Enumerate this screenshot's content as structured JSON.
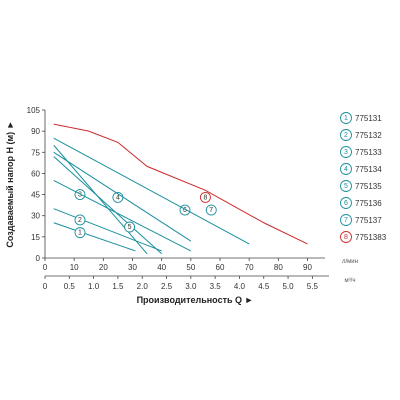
{
  "chart_data": {
    "type": "line",
    "ylabel": "Создаваемый напор H (м)",
    "xlabel": "Производительность Q",
    "x_unit_top": "л/мин",
    "x_unit_bottom": "м³/ч",
    "x_ticks_lmin": [
      "0",
      "10",
      "20",
      "30",
      "40",
      "50",
      "60",
      "70",
      "80",
      "90"
    ],
    "x_ticks_m3h": [
      "0",
      "0.5",
      "1.0",
      "1.5",
      "2.0",
      "2.5",
      "3.0",
      "3.5",
      "4.0",
      "4.5",
      "5.0",
      "5.5"
    ],
    "y_ticks": [
      "0",
      "15",
      "30",
      "45",
      "60",
      "75",
      "90",
      "105"
    ],
    "xlim_lmin": [
      0,
      96
    ],
    "ylim": [
      0,
      105
    ],
    "grid": false,
    "legend_position": "right",
    "colors": {
      "teal": "#1a8f9e",
      "red": "#cc2a2a"
    },
    "series": [
      {
        "name": "775131",
        "label": "1",
        "color": "#1a8f9e",
        "x": [
          3,
          31
        ],
        "y": [
          25,
          5
        ],
        "label_at": [
          12,
          18
        ]
      },
      {
        "name": "775132",
        "label": "2",
        "color": "#1a8f9e",
        "x": [
          3,
          40
        ],
        "y": [
          35,
          5
        ],
        "label_at": [
          12,
          27
        ]
      },
      {
        "name": "775133",
        "label": "3",
        "color": "#1a8f9e",
        "x": [
          3,
          35
        ],
        "y": [
          80,
          3
        ],
        "label_at": [
          12,
          45
        ]
      },
      {
        "name": "775134",
        "label": "4",
        "color": "#1a8f9e",
        "x": [
          3,
          40
        ],
        "y": [
          72,
          3
        ],
        "label_at": [
          25,
          43
        ]
      },
      {
        "name": "775135",
        "label": "5",
        "color": "#1a8f9e",
        "x": [
          3,
          50
        ],
        "y": [
          55,
          5
        ],
        "label_at": [
          29,
          22
        ]
      },
      {
        "name": "775136",
        "label": "6",
        "color": "#1a8f9e",
        "x": [
          3,
          50
        ],
        "y": [
          75,
          12
        ],
        "label_at": [
          48,
          34
        ]
      },
      {
        "name": "775137",
        "label": "7",
        "color": "#1a8f9e",
        "x": [
          3,
          70
        ],
        "y": [
          85,
          10
        ],
        "label_at": [
          57,
          34
        ]
      },
      {
        "name": "7751383",
        "label": "8",
        "color": "#cc2a2a",
        "x": [
          3,
          15,
          25,
          35,
          55,
          75,
          90
        ],
        "y": [
          95,
          90,
          82,
          65,
          48,
          25,
          10
        ],
        "label_at": [
          55,
          43
        ]
      }
    ]
  }
}
